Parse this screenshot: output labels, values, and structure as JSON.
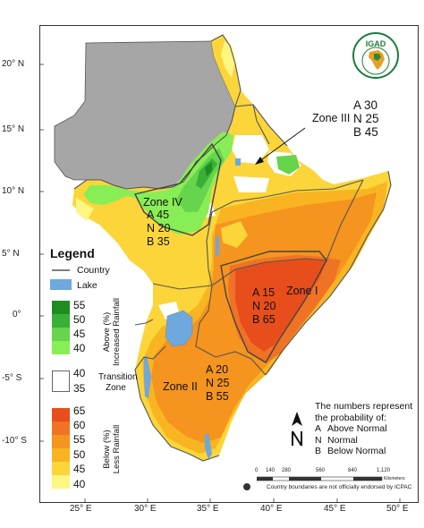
{
  "map": {
    "latitude_labels": [
      "20° N",
      "15° N",
      "10° N",
      "5° N",
      "0°",
      "-5° S",
      "-10° S"
    ],
    "longitude_labels": [
      "25° E",
      "30° E",
      "35° E",
      "40° E",
      "45° E",
      "50° E"
    ],
    "colors": {
      "out_of_region": "#a6a6a6",
      "lake": "#6ea8dc",
      "increased_55": "#1e8c1e",
      "increased_50": "#38b038",
      "increased_45": "#66d44c",
      "increased_40": "#88ee55",
      "transition": "#ffffff",
      "less_65": "#e84e1b",
      "less_60": "#f07224",
      "less_55": "#f5941e",
      "less_50": "#f8b521",
      "less_45": "#fbd53a",
      "less_40": "#fdf680"
    }
  },
  "zones": {
    "zone1": {
      "name": "Zone I",
      "a": "A 15",
      "n": "N 20",
      "b": "B 65"
    },
    "zone2": {
      "name": "Zone II",
      "a": "A 20",
      "n": "N 25",
      "b": "B 55"
    },
    "zone3": {
      "name": "Zone III",
      "a": "A 30",
      "n": "N 25",
      "b": "B 45"
    },
    "zone4": {
      "name": "Zone IV",
      "a": "A 45",
      "n": "N 20",
      "b": "B 35"
    }
  },
  "legend": {
    "title": "Legend",
    "country_label": "Country",
    "lake_label": "Lake",
    "increased_values": [
      "55",
      "50",
      "45",
      "40"
    ],
    "increased_caption_1": "Above (%)",
    "increased_caption_2": "Increased Rainfall",
    "transition_values": [
      "40",
      "35"
    ],
    "transition_caption_1": "Transition",
    "transition_caption_2": "Zone",
    "less_values": [
      "65",
      "60",
      "55",
      "50",
      "45",
      "40"
    ],
    "less_caption_1": "Below (%)",
    "less_caption_2": "Less Rainfall"
  },
  "notes": {
    "line1": "The numbers represent",
    "line2": "the probability of:",
    "a_key": "A",
    "a_text": "Above Normal",
    "n_key": "N",
    "n_text": "Normal",
    "b_key": "B",
    "b_text": "Below Normal"
  },
  "scale_bar": {
    "labels": [
      "0",
      "140",
      "280",
      "560",
      "840",
      "1,120"
    ],
    "unit": "Kilometers"
  },
  "footnote": "Country boundaries are not officially endorsed by ICPAC",
  "logo_text": "IGAD"
}
